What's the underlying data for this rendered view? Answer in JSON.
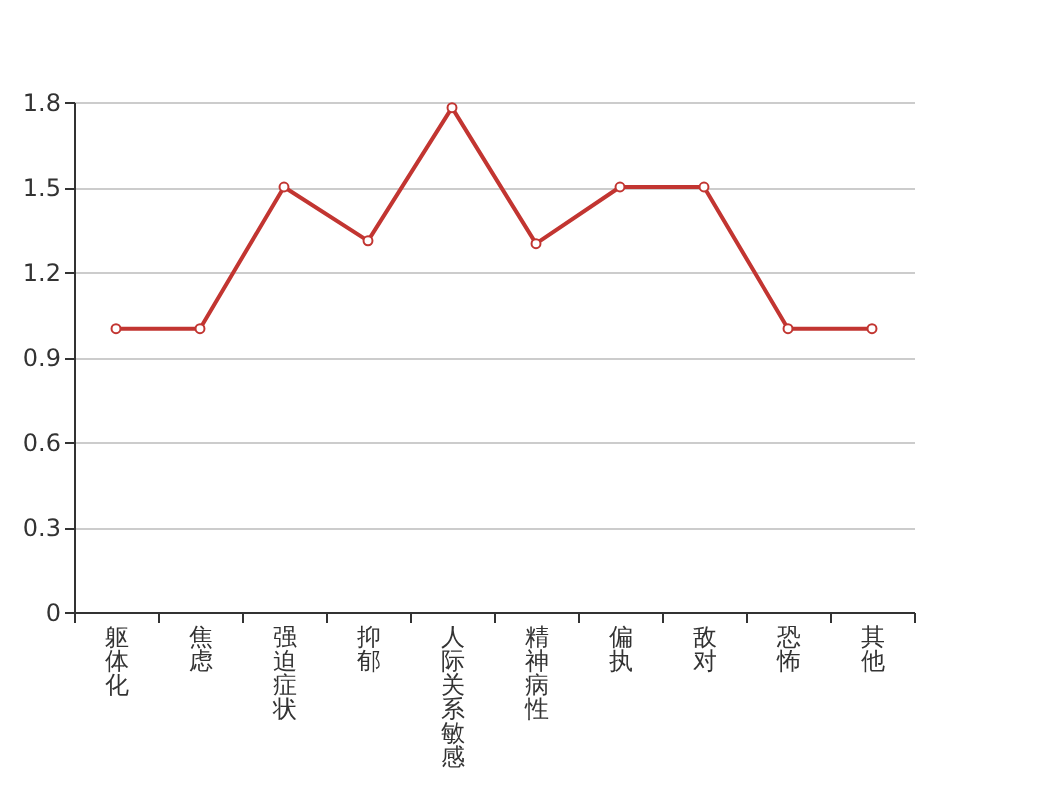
{
  "chart_data": {
    "type": "line",
    "categories": [
      "躯体化",
      "焦虑",
      "强迫症状",
      "抑郁",
      "人际关系敏感",
      "精神病性",
      "偏执",
      "敌对",
      "恐怖",
      "其他"
    ],
    "series": [
      {
        "color": "#c23531",
        "values": [
          1,
          1,
          1.5,
          1.31,
          1.78,
          1.3,
          1.5,
          1.5,
          1,
          1
        ]
      }
    ],
    "ylim": [
      0,
      1.8
    ],
    "yticks": [
      0,
      0.3,
      0.6,
      0.9,
      1.2,
      1.5,
      1.8
    ],
    "grid": "y",
    "marker": "circle",
    "line_style": "solid",
    "legend": false
  }
}
